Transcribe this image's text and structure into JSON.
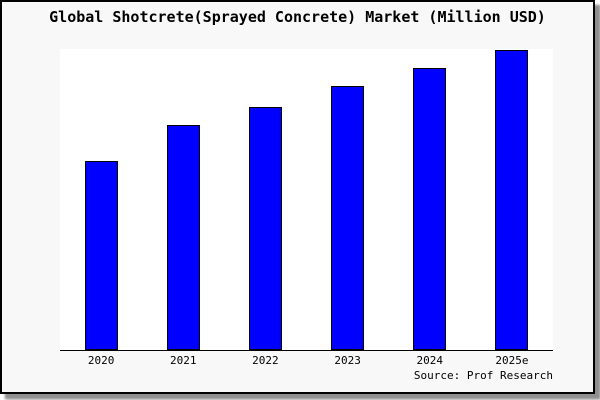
{
  "window": {
    "page_background": "#ffffff",
    "card_background": "#f8f8f8",
    "border_color": "#000000",
    "shadow_color": "#8f8f8f"
  },
  "header": {
    "title": "Global Shotcrete(Sprayed Concrete) Market (Million USD)"
  },
  "footer": {
    "source_label": "Source: Prof Research"
  },
  "chart_data": {
    "type": "bar",
    "title": "Global Shotcrete(Sprayed Concrete) Market (Million USD)",
    "categories": [
      "2020",
      "2021",
      "2022",
      "2023",
      "2024",
      "2025e"
    ],
    "values": [
      63,
      75,
      81,
      88,
      94,
      100
    ],
    "units": "relative, y-axis unlabeled (2025e = 100)",
    "xlabel": "",
    "ylabel": "",
    "ylim": [
      0,
      100.3
    ],
    "grid": false,
    "legend": false,
    "bar_color": "#0000ff",
    "bar_edge_color": "#000000",
    "plot_background": "#ffffff",
    "axis_line_color": "#000000",
    "source": "Source: Prof Research"
  }
}
